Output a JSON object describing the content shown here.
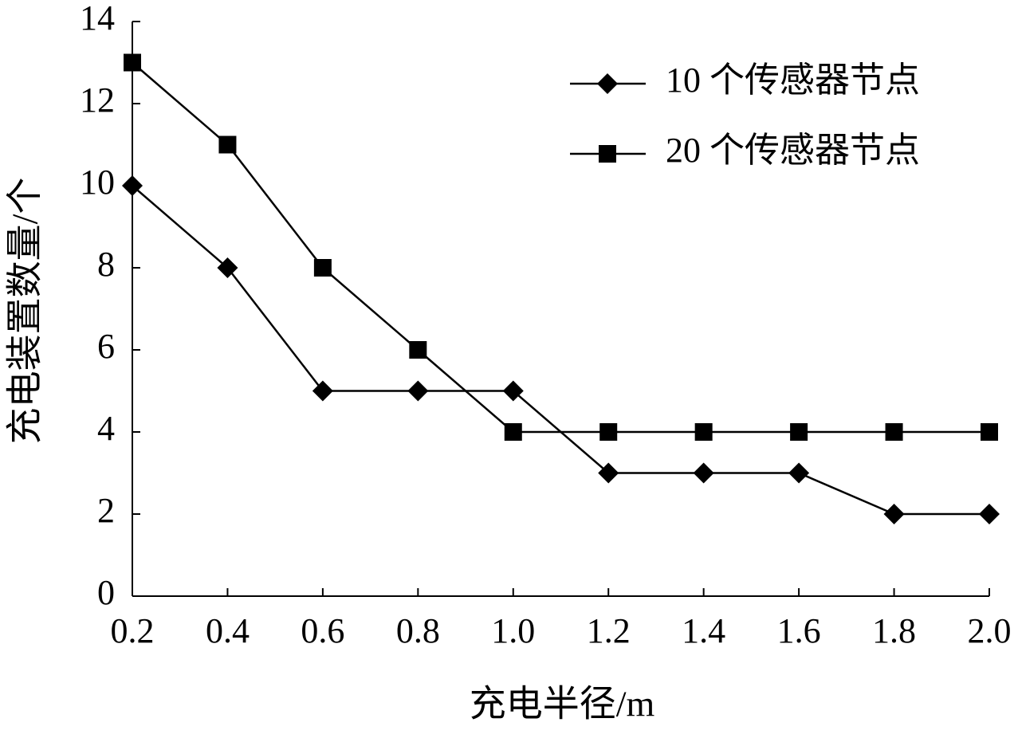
{
  "chart_data": {
    "type": "line",
    "x_label": "充电半径/m",
    "y_label": "充电装置数量/个",
    "x": [
      0.2,
      0.4,
      0.6,
      0.8,
      1.0,
      1.2,
      1.4,
      1.6,
      1.8,
      2.0
    ],
    "series": [
      {
        "name": "10 个传感器节点",
        "color": "#000000",
        "marker": "diamond",
        "values": [
          10,
          8,
          5,
          5,
          5,
          3,
          3,
          3,
          2,
          2
        ]
      },
      {
        "name": "20 个传感器节点",
        "color": "#000000",
        "marker": "square",
        "values": [
          13,
          11,
          8,
          6,
          4,
          4,
          4,
          4,
          4,
          4
        ]
      }
    ],
    "xlim": [
      0.2,
      2.0
    ],
    "ylim": [
      0,
      14
    ],
    "xticks": [
      0.2,
      0.4,
      0.6,
      0.8,
      {
        "value": 1.0,
        "label": "1.0"
      },
      1.2,
      1.4,
      1.6,
      1.8,
      {
        "value": 2.0,
        "label": "2.0"
      }
    ],
    "yticks": [
      0,
      2,
      4,
      6,
      8,
      10,
      12,
      14
    ],
    "grid": false,
    "legend": "upper right"
  }
}
